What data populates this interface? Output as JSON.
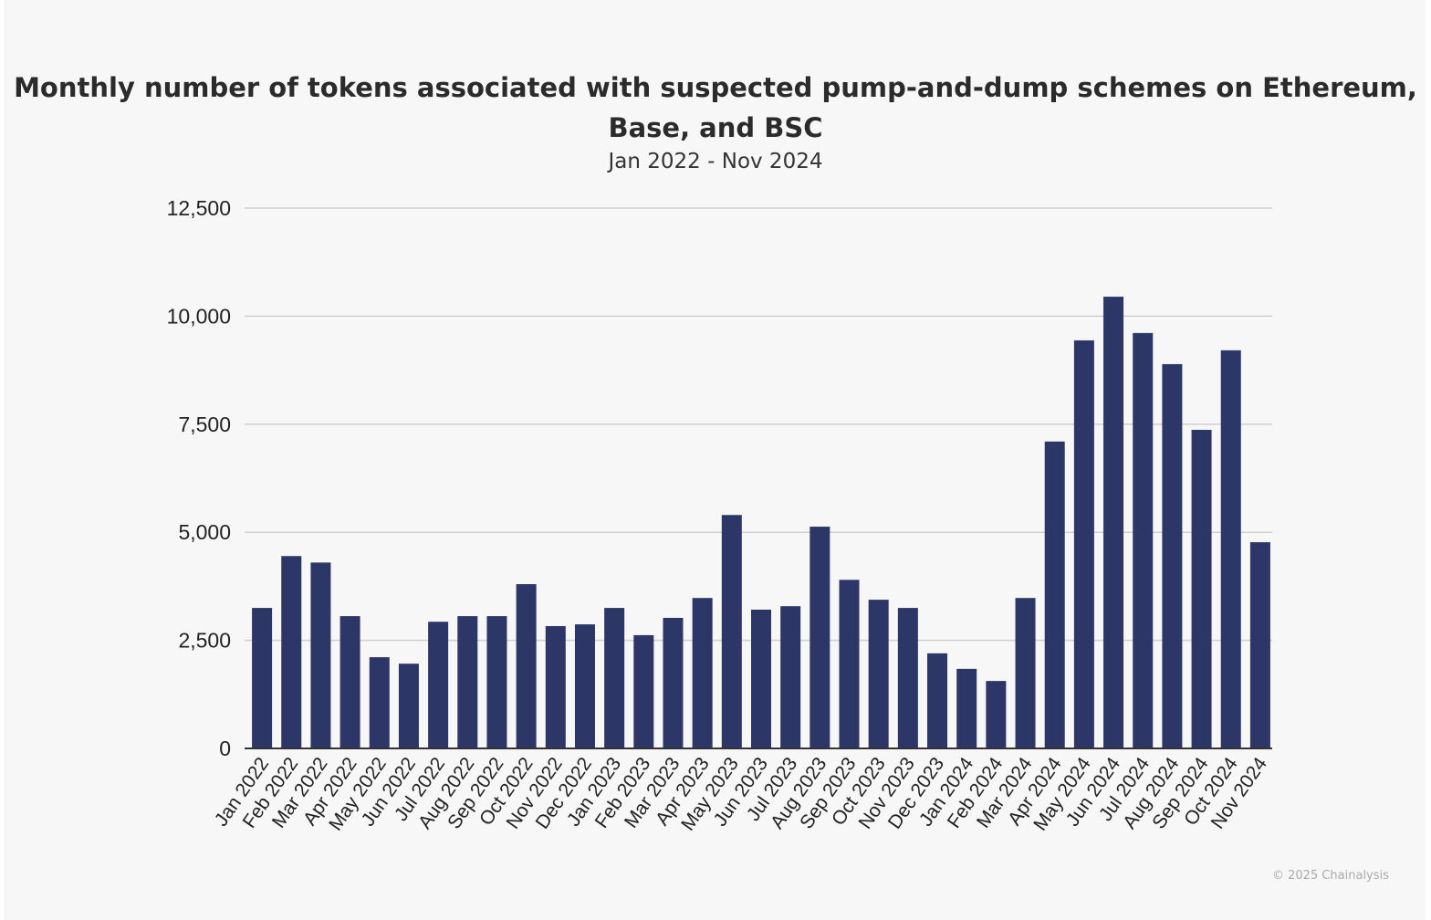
{
  "chart_data": {
    "type": "bar",
    "title": "Monthly number of tokens associated with suspected pump-and-dump schemes on Ethereum, Base, and BSC",
    "subtitle": "Jan 2022 - Nov 2024",
    "xlabel": "",
    "ylabel": "",
    "ylim": [
      0,
      12500
    ],
    "yticks": [
      0,
      2500,
      5000,
      7500,
      10000,
      12500
    ],
    "ytick_labels": [
      "0",
      "2,500",
      "5,000",
      "7,500",
      "10,000",
      "12,500"
    ],
    "grid": true,
    "bar_color": "#2c3768",
    "categories": [
      "Jan 2022",
      "Feb 2022",
      "Mar 2022",
      "Apr 2022",
      "May 2022",
      "Jun 2022",
      "Jul 2022",
      "Aug 2022",
      "Sep 2022",
      "Oct 2022",
      "Nov 2022",
      "Dec 2022",
      "Jan 2023",
      "Feb 2023",
      "Mar 2023",
      "Apr 2023",
      "May 2023",
      "Jun 2023",
      "Jul 2023",
      "Aug 2023",
      "Sep 2023",
      "Oct 2023",
      "Nov 2023",
      "Dec 2023",
      "Jan 2024",
      "Feb 2024",
      "Mar 2024",
      "Apr 2024",
      "May 2024",
      "Jun 2024",
      "Jul 2024",
      "Aug 2024",
      "Sep 2024",
      "Oct 2024",
      "Nov 2024"
    ],
    "values": [
      3250,
      4450,
      4300,
      3060,
      2110,
      1960,
      2930,
      3060,
      3060,
      3800,
      2830,
      2870,
      3250,
      2620,
      3020,
      3480,
      5400,
      3210,
      3290,
      5130,
      3900,
      3440,
      3250,
      2200,
      1840,
      1560,
      3480,
      7100,
      9440,
      10450,
      9610,
      8890,
      7370,
      9210,
      4770
    ]
  },
  "credit": "© 2025 Chainalysis"
}
